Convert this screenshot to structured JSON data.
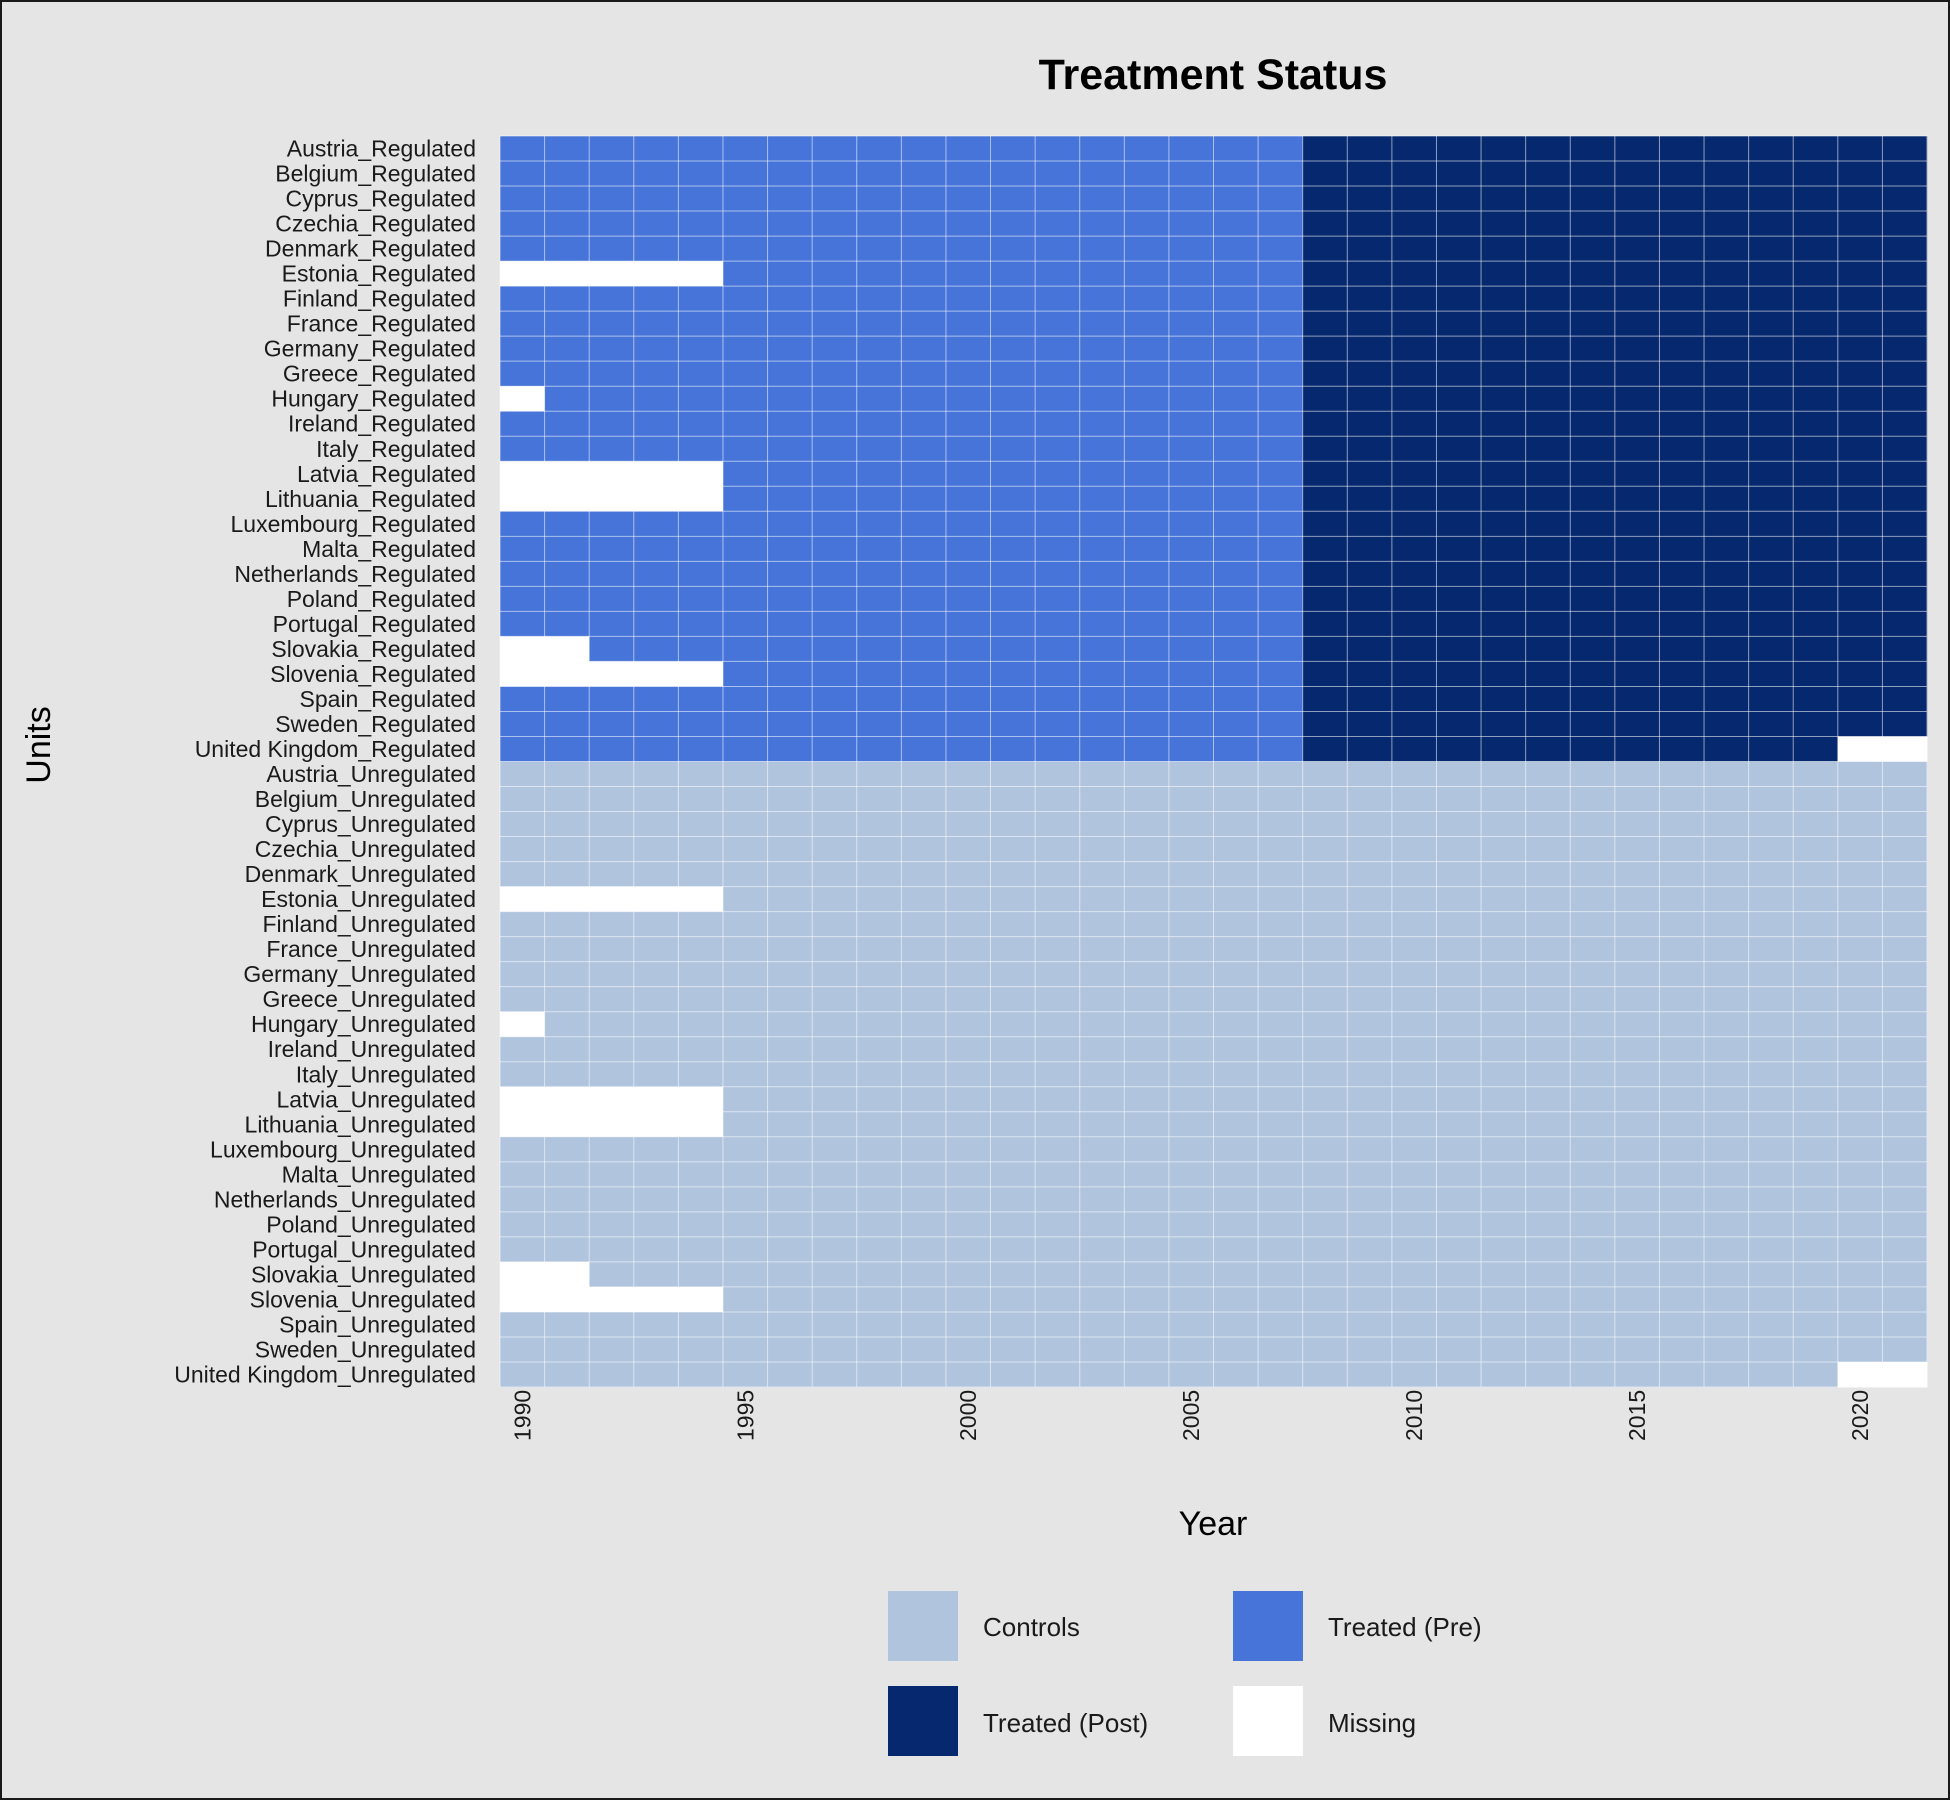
{
  "chart_data": {
    "type": "heatmap",
    "title": "Treatment Status",
    "xlabel": "Year",
    "ylabel": "Units",
    "x_range": [
      1990,
      2021
    ],
    "x_ticks": [
      "1990",
      "1995",
      "2000",
      "2005",
      "2010",
      "2015",
      "2020"
    ],
    "colors": {
      "control": "#b0c4de",
      "treated_pre": "#4674d8",
      "treated_post": "#06286e",
      "missing": "#ffffff",
      "background": "#e5e5e5"
    },
    "legend": {
      "placement": "bottom",
      "items": [
        {
          "key": "control",
          "label": "Controls"
        },
        {
          "key": "treated_pre",
          "label": "Treated (Pre)"
        },
        {
          "key": "treated_post",
          "label": "Treated (Post)"
        },
        {
          "key": "missing",
          "label": "Missing"
        }
      ]
    },
    "treatment_start_year": 2008,
    "units": [
      {
        "name": "Austria_Regulated",
        "group": "treated",
        "first_year": 1990,
        "last_year": 2021
      },
      {
        "name": "Belgium_Regulated",
        "group": "treated",
        "first_year": 1990,
        "last_year": 2021
      },
      {
        "name": "Cyprus_Regulated",
        "group": "treated",
        "first_year": 1990,
        "last_year": 2021
      },
      {
        "name": "Czechia_Regulated",
        "group": "treated",
        "first_year": 1990,
        "last_year": 2021
      },
      {
        "name": "Denmark_Regulated",
        "group": "treated",
        "first_year": 1990,
        "last_year": 2021
      },
      {
        "name": "Estonia_Regulated",
        "group": "treated",
        "first_year": 1995,
        "last_year": 2021
      },
      {
        "name": "Finland_Regulated",
        "group": "treated",
        "first_year": 1990,
        "last_year": 2021
      },
      {
        "name": "France_Regulated",
        "group": "treated",
        "first_year": 1990,
        "last_year": 2021
      },
      {
        "name": "Germany_Regulated",
        "group": "treated",
        "first_year": 1990,
        "last_year": 2021
      },
      {
        "name": "Greece_Regulated",
        "group": "treated",
        "first_year": 1990,
        "last_year": 2021
      },
      {
        "name": "Hungary_Regulated",
        "group": "treated",
        "first_year": 1991,
        "last_year": 2021
      },
      {
        "name": "Ireland_Regulated",
        "group": "treated",
        "first_year": 1990,
        "last_year": 2021
      },
      {
        "name": "Italy_Regulated",
        "group": "treated",
        "first_year": 1990,
        "last_year": 2021
      },
      {
        "name": "Latvia_Regulated",
        "group": "treated",
        "first_year": 1995,
        "last_year": 2021
      },
      {
        "name": "Lithuania_Regulated",
        "group": "treated",
        "first_year": 1995,
        "last_year": 2021
      },
      {
        "name": "Luxembourg_Regulated",
        "group": "treated",
        "first_year": 1990,
        "last_year": 2021
      },
      {
        "name": "Malta_Regulated",
        "group": "treated",
        "first_year": 1990,
        "last_year": 2021
      },
      {
        "name": "Netherlands_Regulated",
        "group": "treated",
        "first_year": 1990,
        "last_year": 2021
      },
      {
        "name": "Poland_Regulated",
        "group": "treated",
        "first_year": 1990,
        "last_year": 2021
      },
      {
        "name": "Portugal_Regulated",
        "group": "treated",
        "first_year": 1990,
        "last_year": 2021
      },
      {
        "name": "Slovakia_Regulated",
        "group": "treated",
        "first_year": 1992,
        "last_year": 2021
      },
      {
        "name": "Slovenia_Regulated",
        "group": "treated",
        "first_year": 1995,
        "last_year": 2021
      },
      {
        "name": "Spain_Regulated",
        "group": "treated",
        "first_year": 1990,
        "last_year": 2021
      },
      {
        "name": "Sweden_Regulated",
        "group": "treated",
        "first_year": 1990,
        "last_year": 2021
      },
      {
        "name": "United Kingdom_Regulated",
        "group": "treated",
        "first_year": 1990,
        "last_year": 2019
      },
      {
        "name": "Austria_Unregulated",
        "group": "control",
        "first_year": 1990,
        "last_year": 2021
      },
      {
        "name": "Belgium_Unregulated",
        "group": "control",
        "first_year": 1990,
        "last_year": 2021
      },
      {
        "name": "Cyprus_Unregulated",
        "group": "control",
        "first_year": 1990,
        "last_year": 2021
      },
      {
        "name": "Czechia_Unregulated",
        "group": "control",
        "first_year": 1990,
        "last_year": 2021
      },
      {
        "name": "Denmark_Unregulated",
        "group": "control",
        "first_year": 1990,
        "last_year": 2021
      },
      {
        "name": "Estonia_Unregulated",
        "group": "control",
        "first_year": 1995,
        "last_year": 2021
      },
      {
        "name": "Finland_Unregulated",
        "group": "control",
        "first_year": 1990,
        "last_year": 2021
      },
      {
        "name": "France_Unregulated",
        "group": "control",
        "first_year": 1990,
        "last_year": 2021
      },
      {
        "name": "Germany_Unregulated",
        "group": "control",
        "first_year": 1990,
        "last_year": 2021
      },
      {
        "name": "Greece_Unregulated",
        "group": "control",
        "first_year": 1990,
        "last_year": 2021
      },
      {
        "name": "Hungary_Unregulated",
        "group": "control",
        "first_year": 1991,
        "last_year": 2021
      },
      {
        "name": "Ireland_Unregulated",
        "group": "control",
        "first_year": 1990,
        "last_year": 2021
      },
      {
        "name": "Italy_Unregulated",
        "group": "control",
        "first_year": 1990,
        "last_year": 2021
      },
      {
        "name": "Latvia_Unregulated",
        "group": "control",
        "first_year": 1995,
        "last_year": 2021
      },
      {
        "name": "Lithuania_Unregulated",
        "group": "control",
        "first_year": 1995,
        "last_year": 2021
      },
      {
        "name": "Luxembourg_Unregulated",
        "group": "control",
        "first_year": 1990,
        "last_year": 2021
      },
      {
        "name": "Malta_Unregulated",
        "group": "control",
        "first_year": 1990,
        "last_year": 2021
      },
      {
        "name": "Netherlands_Unregulated",
        "group": "control",
        "first_year": 1990,
        "last_year": 2021
      },
      {
        "name": "Poland_Unregulated",
        "group": "control",
        "first_year": 1990,
        "last_year": 2021
      },
      {
        "name": "Portugal_Unregulated",
        "group": "control",
        "first_year": 1990,
        "last_year": 2021
      },
      {
        "name": "Slovakia_Unregulated",
        "group": "control",
        "first_year": 1992,
        "last_year": 2021
      },
      {
        "name": "Slovenia_Unregulated",
        "group": "control",
        "first_year": 1995,
        "last_year": 2021
      },
      {
        "name": "Spain_Unregulated",
        "group": "control",
        "first_year": 1990,
        "last_year": 2021
      },
      {
        "name": "Sweden_Unregulated",
        "group": "control",
        "first_year": 1990,
        "last_year": 2021
      },
      {
        "name": "United Kingdom_Unregulated",
        "group": "control",
        "first_year": 1990,
        "last_year": 2019
      }
    ]
  }
}
